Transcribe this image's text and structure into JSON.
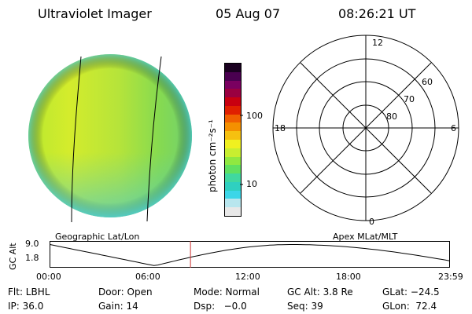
{
  "header": {
    "instrument": "Ultraviolet Imager",
    "date": "05 Aug 07",
    "time": "08:26:21 UT"
  },
  "colorbar": {
    "unit_label": "photon cm⁻²s⁻¹",
    "ticks": [
      {
        "value": 100,
        "label": "100"
      },
      {
        "value": 10,
        "label": "10"
      }
    ],
    "colors": [
      "#e8e8e8",
      "#b8e6ee",
      "#3cd6e8",
      "#2fd0c0",
      "#40d8a0",
      "#60e060",
      "#90e840",
      "#c8ee30",
      "#f0f020",
      "#f6c010",
      "#f49000",
      "#f06000",
      "#e02000",
      "#c80010",
      "#9a0040",
      "#7a0060",
      "#4a0050",
      "#1a0020"
    ]
  },
  "left_panel": {
    "caption": "Geographic Lat/Lon"
  },
  "right_panel": {
    "caption": "Apex MLat/MLT",
    "mlt_labels": [
      "12",
      "18",
      "6",
      "0"
    ],
    "lat_labels": [
      "60",
      "70",
      "80"
    ]
  },
  "altitude_plot": {
    "ylabel": "GC Alt",
    "y_ticks": [
      "9.0",
      "1.8"
    ],
    "x_ticks": [
      "00:00",
      "06:00",
      "12:00",
      "18:00",
      "23:59"
    ],
    "current_time_hours": 8.44,
    "marker_color": "#cc3333"
  },
  "status": {
    "row1": [
      {
        "key": "flt",
        "text": "Flt: LBHL"
      },
      {
        "key": "door",
        "text": "Door: Open"
      },
      {
        "key": "mode",
        "text": "Mode: Normal"
      },
      {
        "key": "gcalt",
        "text": "GC Alt: 3.8 Re"
      },
      {
        "key": "glat",
        "text": "GLat: −24.5"
      }
    ],
    "row2": [
      {
        "key": "ip",
        "text": "IP: 36.0"
      },
      {
        "key": "gain",
        "text": "Gain: 14"
      },
      {
        "key": "dsp",
        "text": "Dsp:   −0.0"
      },
      {
        "key": "seq",
        "text": "Seq: 39"
      },
      {
        "key": "glon",
        "text": "GLon:  72.4"
      }
    ]
  }
}
